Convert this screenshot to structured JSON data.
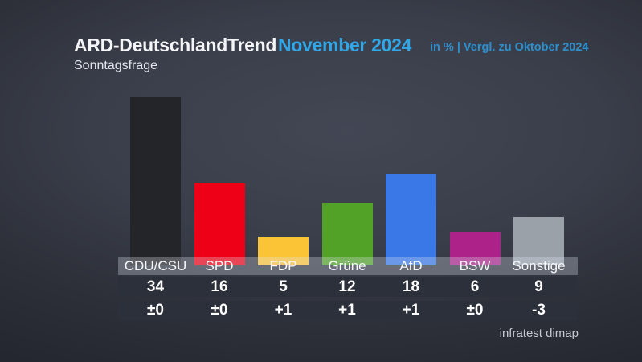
{
  "header": {
    "title": "ARD-DeutschlandTrend",
    "period": "November 2024",
    "note": "in % | Vergl. zu Oktober 2024",
    "subtitle": "Sonntagsfrage"
  },
  "footer": {
    "source": "infratest dimap"
  },
  "colors": {
    "title_white": "#f4f5f7",
    "period_blue": "#2fa7e9",
    "note_blue": "#2e8fcd",
    "row_band_dark": "#2c303a",
    "name_band_overlay": "rgba(222,228,238,0.30)",
    "footer_gray": "#c5c9d2"
  },
  "chart_data": {
    "type": "bar",
    "title": "Sonntagsfrage",
    "subtitle": "ARD-DeutschlandTrend November 2024",
    "unit": "%",
    "comparison": "Vergl. zu Oktober 2024",
    "categories": [
      "CDU/CSU",
      "SPD",
      "FDP",
      "Grüne",
      "AfD",
      "BSW",
      "Sonstige"
    ],
    "values": [
      34,
      16,
      5,
      12,
      18,
      6,
      9
    ],
    "changes": [
      "±0",
      "±0",
      "+1",
      "+1",
      "+1",
      "±0",
      "-3"
    ],
    "bar_colors": [
      "#242529",
      "#ee0016",
      "#fbc437",
      "#52a228",
      "#3b78e7",
      "#ac2289",
      "#9aa1a9"
    ],
    "ylim": [
      0,
      40
    ],
    "grid": false,
    "legend": false,
    "source": "infratest dimap"
  }
}
